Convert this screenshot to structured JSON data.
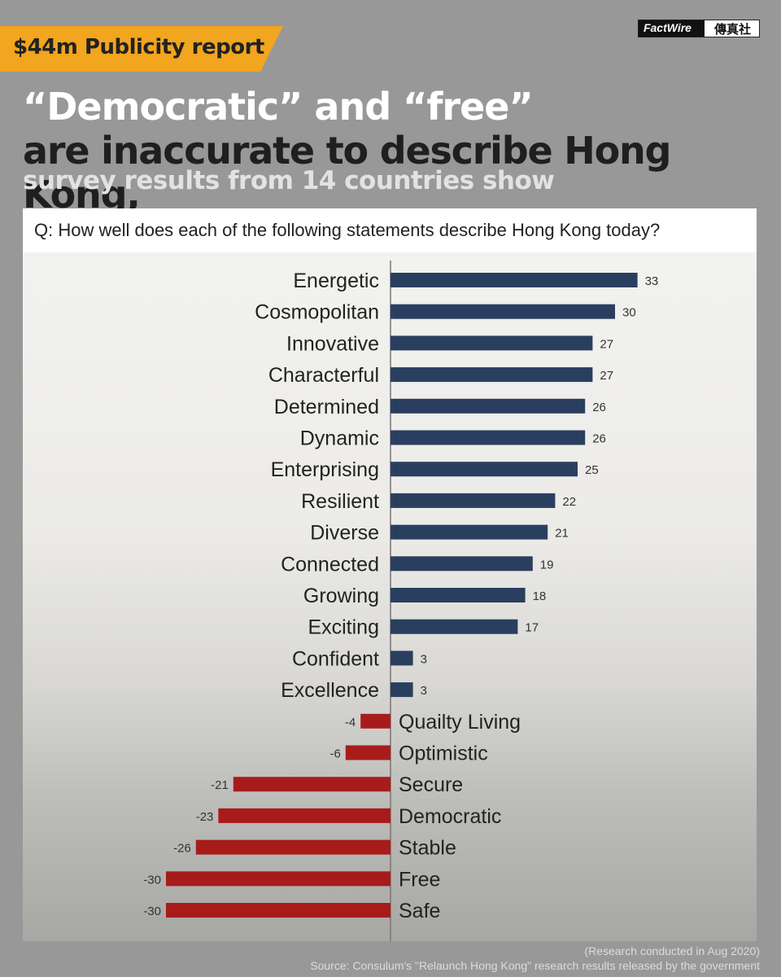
{
  "header": {
    "ribbon_label": "$44m Publicity report",
    "brand_en": "FactWire",
    "brand_zh": "傳真社"
  },
  "title": {
    "line1": "“Democratic” and “free”",
    "line2": "are inaccurate to describe Hong Kong,",
    "line3": "survey results from 14 countries show"
  },
  "question": "Q: How well does each of the following statements describe Hong Kong today?",
  "colors": {
    "positive": "#2a3f5f",
    "negative": "#a81b1b",
    "ribbon": "#f2a51e",
    "background": "#989898"
  },
  "chart_data": {
    "type": "bar",
    "orientation": "horizontal",
    "categories": [
      "Energetic",
      "Cosmopolitan",
      "Innovative",
      "Characterful",
      "Determined",
      "Dynamic",
      "Enterprising",
      "Resilient",
      "Diverse",
      "Connected",
      "Growing",
      "Exciting",
      "Confident",
      "Excellence",
      "Quailty Living",
      "Optimistic",
      "Secure",
      "Democratic",
      "Stable",
      "Free",
      "Safe"
    ],
    "values": [
      33,
      30,
      27,
      27,
      26,
      26,
      25,
      22,
      21,
      19,
      18,
      17,
      3,
      3,
      -4,
      -6,
      -21,
      -23,
      -26,
      -30,
      -30
    ],
    "value_labels": [
      "33",
      "30",
      "27",
      "27",
      "26",
      "26",
      "25",
      "22",
      "21",
      "19",
      "18",
      "17",
      "3",
      "3",
      "-4",
      "-6",
      "-21",
      "-23",
      "-26",
      "-30",
      "-30"
    ],
    "xlim": [
      -30,
      33
    ],
    "grid": false,
    "legend": "none"
  },
  "footer": {
    "note": "(Research conducted in Aug 2020)",
    "source": "Source: Consulum's \"Relaunch Hong Kong\" research results released by the government"
  }
}
